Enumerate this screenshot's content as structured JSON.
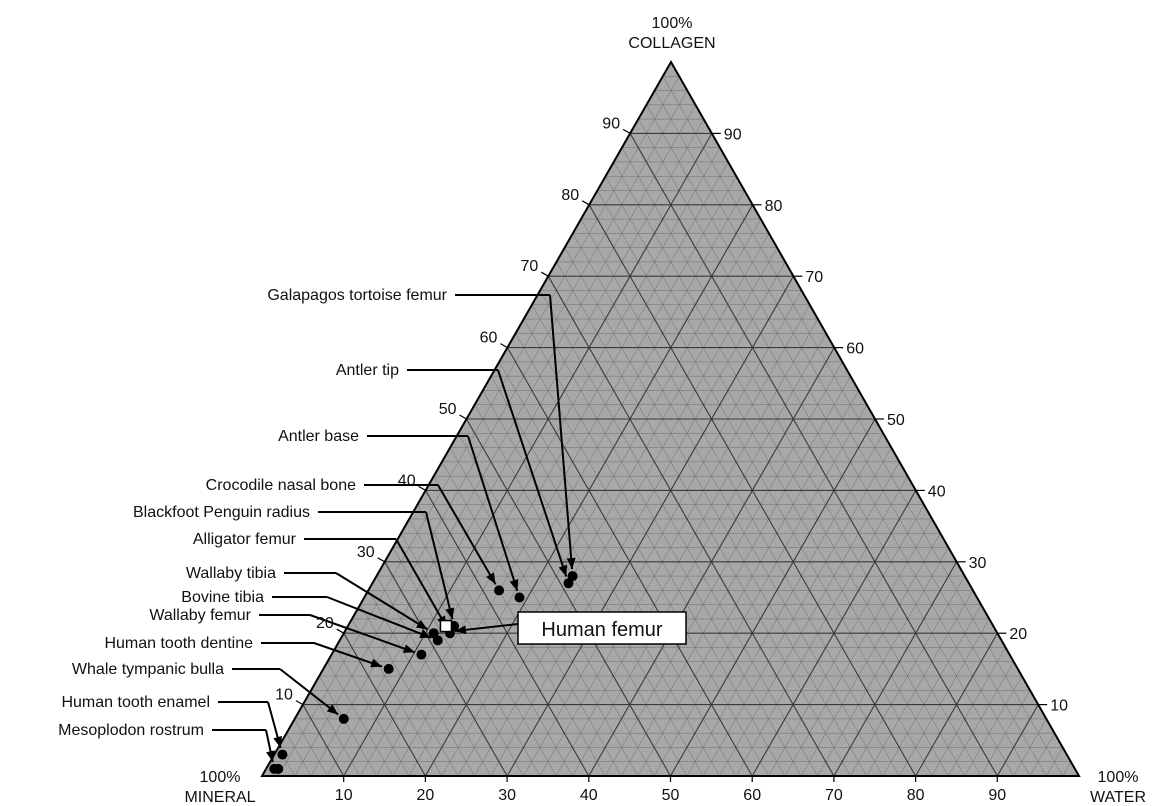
{
  "chart_data": {
    "type": "scatter",
    "subtype": "ternary",
    "title": "",
    "axes": {
      "top": {
        "percent": "100%",
        "name": "COLLAGEN"
      },
      "left": {
        "percent": "100%",
        "name": "MINERAL"
      },
      "right": {
        "percent": "100%",
        "name": "WATER"
      }
    },
    "tick_values": [
      "10",
      "20",
      "30",
      "40",
      "50",
      "60",
      "70",
      "80",
      "90"
    ],
    "grid": true,
    "colors": {
      "grid_fill": "#a8a8a8",
      "fine_grid": "#6e6e6e",
      "major_grid": "#3a3a3a",
      "marker": "#000000"
    },
    "points": [
      {
        "name": "Galapagos tortoise femur",
        "mineral": 48,
        "collagen": 28,
        "water": 24
      },
      {
        "name": "Antler tip",
        "mineral": 49,
        "collagen": 27,
        "water": 24
      },
      {
        "name": "Antler base",
        "mineral": 56,
        "collagen": 25,
        "water": 19
      },
      {
        "name": "Crocodile nasal bone",
        "mineral": 58,
        "collagen": 26,
        "water": 16
      },
      {
        "name": "Blackfoot Penguin radius",
        "mineral": 66,
        "collagen": 21,
        "water": 13
      },
      {
        "name": "Alligator femur",
        "mineral": 67,
        "collagen": 20,
        "water": 13
      },
      {
        "name": "Wallaby tibia",
        "mineral": 69,
        "collagen": 20,
        "water": 11
      },
      {
        "name": "Bovine tibia",
        "mineral": 69,
        "collagen": 19,
        "water": 12
      },
      {
        "name": "Wallaby femur",
        "mineral": 72,
        "collagen": 17,
        "water": 11
      },
      {
        "name": "Human tooth dentine",
        "mineral": 77,
        "collagen": 15,
        "water": 8
      },
      {
        "name": "Whale tympanic bulla",
        "mineral": 86,
        "collagen": 8,
        "water": 6
      },
      {
        "name": "Human tooth enamel",
        "mineral": 96,
        "collagen": 3,
        "water": 1
      },
      {
        "name": "Mesoplodon rostrum",
        "mineral": 98,
        "collagen": 1,
        "water": 1
      },
      {
        "name": "Mesoplodon rostrum",
        "mineral": 98,
        "collagen": 1,
        "water": 1.5
      }
    ],
    "highlight": {
      "name": "Human femur",
      "mineral": 67,
      "collagen": 21,
      "water": 12
    },
    "labels": [
      {
        "text": "Galapagos tortoise femur",
        "point": 0
      },
      {
        "text": "Antler tip",
        "point": 1
      },
      {
        "text": "Antler base",
        "point": 2
      },
      {
        "text": "Crocodile nasal bone",
        "point": 3
      },
      {
        "text": "Blackfoot Penguin radius",
        "point": 4
      },
      {
        "text": "Alligator femur",
        "point": 5
      },
      {
        "text": "Wallaby tibia",
        "point": 6
      },
      {
        "text": "Bovine tibia",
        "point": 7
      },
      {
        "text": "Wallaby femur",
        "point": 8
      },
      {
        "text": "Human tooth dentine",
        "point": 9
      },
      {
        "text": "Whale tympanic bulla",
        "point": 10
      },
      {
        "text": "Human tooth enamel",
        "point": 11
      },
      {
        "text": "Mesoplodon rostrum",
        "point": 12
      }
    ]
  }
}
